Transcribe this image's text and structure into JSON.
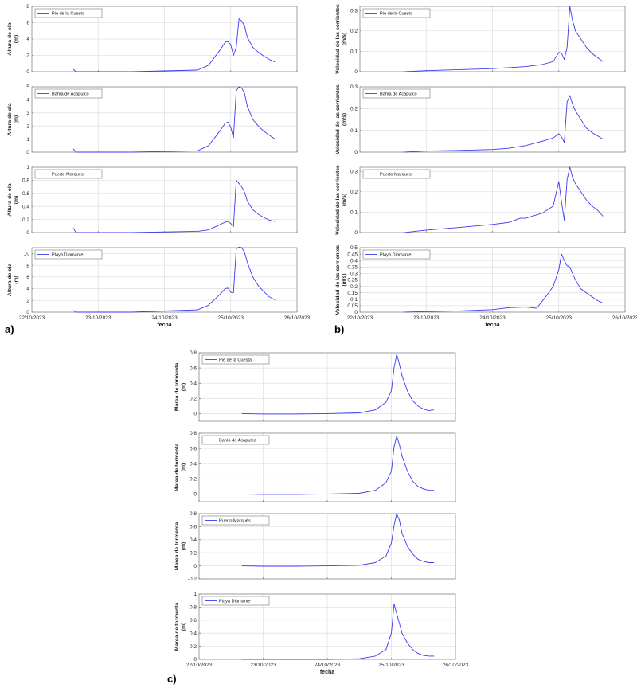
{
  "figure_labels": [
    "a)",
    "b)",
    "c)"
  ],
  "axis_text": {
    "x_label": "fecha",
    "x_ticks": [
      "22/10/2023",
      "23/10/2023",
      "24/10/2023",
      "25/10/2023",
      "26/10/2023"
    ],
    "ylabel_a": [
      "Altura de ola",
      "(m)"
    ],
    "ylabel_b": [
      "Velocidad de las corrientes",
      "(m/s)"
    ],
    "ylabel_c": [
      "Marea de tormenta",
      "(m)"
    ]
  },
  "colors": {
    "line": "#3b3bf0",
    "grid": "#e2e2e2",
    "axis": "#555555"
  },
  "chart_data": [
    {
      "type": "line",
      "panel": "a",
      "title": "",
      "xlabel": "",
      "ylabel": "Altura de ola (m)",
      "xlim": [
        "22/10/2023",
        "26/10/2023"
      ],
      "ylim": [
        0,
        8
      ],
      "yticks": [
        0,
        2,
        4,
        6,
        8
      ],
      "legend": "top-left",
      "grid": true,
      "series": [
        {
          "name": "Pie de la Cuesta",
          "x": [
            "2023-10-22T15:00",
            "2023-10-22T16:00",
            "2023-10-23T00:00",
            "2023-10-23T12:00",
            "2023-10-24T00:00",
            "2023-10-24T12:00",
            "2023-10-24T16:00",
            "2023-10-24T20:00",
            "2023-10-24T22:00",
            "2023-10-24T23:00",
            "2023-10-25T00:00",
            "2023-10-25T01:00",
            "2023-10-25T02:00",
            "2023-10-25T03:00",
            "2023-10-25T04:00",
            "2023-10-25T05:00",
            "2023-10-25T06:00",
            "2023-10-25T08:00",
            "2023-10-25T10:00",
            "2023-10-25T12:00",
            "2023-10-25T14:00",
            "2023-10-25T16:00"
          ],
          "y": [
            0.3,
            0,
            0,
            0,
            0.1,
            0.2,
            0.8,
            2.6,
            3.6,
            3.7,
            3.3,
            2.0,
            3.0,
            6.5,
            6.2,
            5.6,
            4.2,
            3.0,
            2.4,
            1.9,
            1.5,
            1.2
          ]
        }
      ]
    },
    {
      "type": "line",
      "panel": "a",
      "title": "",
      "xlabel": "",
      "ylabel": "Altura de ola (m)",
      "xlim": [
        "22/10/2023",
        "26/10/2023"
      ],
      "ylim": [
        0,
        5
      ],
      "yticks": [
        0,
        1,
        2,
        3,
        4,
        5
      ],
      "legend": "top-left",
      "grid": true,
      "series": [
        {
          "name": "Bahía de Acapulco",
          "x": [
            "2023-10-22T15:00",
            "2023-10-22T16:00",
            "2023-10-23T00:00",
            "2023-10-23T12:00",
            "2023-10-24T00:00",
            "2023-10-24T12:00",
            "2023-10-24T16:00",
            "2023-10-24T20:00",
            "2023-10-24T22:00",
            "2023-10-24T23:00",
            "2023-10-25T00:00",
            "2023-10-25T01:00",
            "2023-10-25T02:00",
            "2023-10-25T03:00",
            "2023-10-25T04:00",
            "2023-10-25T05:00",
            "2023-10-25T06:00",
            "2023-10-25T08:00",
            "2023-10-25T10:00",
            "2023-10-25T12:00",
            "2023-10-25T14:00",
            "2023-10-25T16:00"
          ],
          "y": [
            0.25,
            0,
            0,
            0,
            0.05,
            0.1,
            0.5,
            1.6,
            2.2,
            2.3,
            1.9,
            1.1,
            4.7,
            5.0,
            4.9,
            4.5,
            3.5,
            2.5,
            2.0,
            1.6,
            1.3,
            1.0
          ]
        }
      ]
    },
    {
      "type": "line",
      "panel": "a",
      "title": "",
      "xlabel": "",
      "ylabel": "Altura de ola (m)",
      "xlim": [
        "22/10/2023",
        "26/10/2023"
      ],
      "ylim": [
        0,
        1
      ],
      "yticks": [
        0,
        0.2,
        0.4,
        0.6,
        0.8,
        1
      ],
      "legend": "top-left",
      "grid": true,
      "series": [
        {
          "name": "Puerto Marqués",
          "x": [
            "2023-10-22T15:00",
            "2023-10-22T16:00",
            "2023-10-23T00:00",
            "2023-10-23T12:00",
            "2023-10-24T00:00",
            "2023-10-24T12:00",
            "2023-10-24T16:00",
            "2023-10-24T20:00",
            "2023-10-24T22:00",
            "2023-10-24T23:00",
            "2023-10-25T00:00",
            "2023-10-25T01:00",
            "2023-10-25T02:00",
            "2023-10-25T04:00",
            "2023-10-25T05:00",
            "2023-10-25T06:00",
            "2023-10-25T08:00",
            "2023-10-25T10:00",
            "2023-10-25T12:00",
            "2023-10-25T14:00",
            "2023-10-25T16:00"
          ],
          "y": [
            0.07,
            0,
            0,
            0,
            0.01,
            0.02,
            0.04,
            0.12,
            0.16,
            0.17,
            0.14,
            0.09,
            0.8,
            0.7,
            0.62,
            0.48,
            0.35,
            0.28,
            0.23,
            0.19,
            0.17
          ]
        }
      ]
    },
    {
      "type": "line",
      "panel": "a",
      "title": "",
      "xlabel": "fecha",
      "ylabel": "Altura de ola (m)",
      "xlim": [
        "22/10/2023",
        "26/10/2023"
      ],
      "ylim": [
        0,
        11
      ],
      "yticks": [
        0,
        2,
        4,
        6,
        8,
        10
      ],
      "legend": "top-left",
      "grid": true,
      "series": [
        {
          "name": "Playa Diamante",
          "x": [
            "2023-10-22T15:00",
            "2023-10-22T16:00",
            "2023-10-23T00:00",
            "2023-10-23T12:00",
            "2023-10-24T00:00",
            "2023-10-24T12:00",
            "2023-10-24T16:00",
            "2023-10-24T20:00",
            "2023-10-24T22:00",
            "2023-10-24T23:00",
            "2023-10-25T00:00",
            "2023-10-25T01:00",
            "2023-10-25T02:00",
            "2023-10-25T03:00",
            "2023-10-25T04:00",
            "2023-10-25T05:00",
            "2023-10-25T06:00",
            "2023-10-25T08:00",
            "2023-10-25T10:00",
            "2023-10-25T12:00",
            "2023-10-25T14:00",
            "2023-10-25T16:00"
          ],
          "y": [
            0.3,
            0,
            0,
            0,
            0.2,
            0.4,
            1.2,
            3.0,
            4.0,
            4.1,
            3.4,
            3.3,
            10.8,
            11.1,
            11.0,
            10.2,
            8.5,
            6.0,
            4.5,
            3.5,
            2.6,
            2.1
          ]
        }
      ]
    },
    {
      "type": "line",
      "panel": "b",
      "title": "",
      "xlabel": "",
      "ylabel": "Velocidad de las corrientes (m/s)",
      "xlim": [
        "22/10/2023",
        "26/10/2023"
      ],
      "ylim": [
        0,
        0.32
      ],
      "yticks": [
        0,
        0.1,
        0.2,
        0.3
      ],
      "legend": "top-left",
      "grid": true,
      "series": [
        {
          "name": "Pie de la Cuesta",
          "x": [
            "2023-10-22T16:00",
            "2023-10-23T00:00",
            "2023-10-23T12:00",
            "2023-10-24T00:00",
            "2023-10-24T06:00",
            "2023-10-24T12:00",
            "2023-10-24T18:00",
            "2023-10-24T22:00",
            "2023-10-25T00:00",
            "2023-10-25T01:00",
            "2023-10-25T02:00",
            "2023-10-25T03:00",
            "2023-10-25T04:00",
            "2023-10-25T05:00",
            "2023-10-25T06:00",
            "2023-10-25T08:00",
            "2023-10-25T10:00",
            "2023-10-25T12:00",
            "2023-10-25T14:00",
            "2023-10-25T16:00"
          ],
          "y": [
            0,
            0.005,
            0.01,
            0.015,
            0.02,
            0.025,
            0.035,
            0.05,
            0.095,
            0.09,
            0.06,
            0.12,
            0.32,
            0.25,
            0.2,
            0.16,
            0.12,
            0.09,
            0.07,
            0.05
          ]
        }
      ]
    },
    {
      "type": "line",
      "panel": "b",
      "title": "",
      "xlabel": "",
      "ylabel": "Velocidad de las corrientes (m/s)",
      "xlim": [
        "22/10/2023",
        "26/10/2023"
      ],
      "ylim": [
        0,
        0.3
      ],
      "yticks": [
        0,
        0.1,
        0.2,
        0.3
      ],
      "legend": "top-left",
      "grid": true,
      "series": [
        {
          "name": "Bahía de Acapulco",
          "x": [
            "2023-10-22T16:00",
            "2023-10-23T00:00",
            "2023-10-23T12:00",
            "2023-10-24T00:00",
            "2023-10-24T06:00",
            "2023-10-24T12:00",
            "2023-10-24T18:00",
            "2023-10-24T22:00",
            "2023-10-25T00:00",
            "2023-10-25T01:00",
            "2023-10-25T02:00",
            "2023-10-25T03:00",
            "2023-10-25T04:00",
            "2023-10-25T05:00",
            "2023-10-25T06:00",
            "2023-10-25T08:00",
            "2023-10-25T10:00",
            "2023-10-25T12:00",
            "2023-10-25T14:00",
            "2023-10-25T16:00"
          ],
          "y": [
            0,
            0.005,
            0.008,
            0.012,
            0.018,
            0.03,
            0.05,
            0.065,
            0.085,
            0.07,
            0.045,
            0.23,
            0.26,
            0.22,
            0.19,
            0.15,
            0.11,
            0.09,
            0.075,
            0.06
          ]
        }
      ]
    },
    {
      "type": "line",
      "panel": "b",
      "title": "",
      "xlabel": "",
      "ylabel": "Velocidad de las corrientes (m/s)",
      "xlim": [
        "22/10/2023",
        "26/10/2023"
      ],
      "ylim": [
        0,
        0.32
      ],
      "yticks": [
        0,
        0.1,
        0.2,
        0.3
      ],
      "legend": "top-left",
      "grid": true,
      "series": [
        {
          "name": "Puerto Marqués",
          "x": [
            "2023-10-22T16:00",
            "2023-10-23T00:00",
            "2023-10-23T12:00",
            "2023-10-24T00:00",
            "2023-10-24T06:00",
            "2023-10-24T10:00",
            "2023-10-24T12:00",
            "2023-10-24T18:00",
            "2023-10-24T22:00",
            "2023-10-25T00:00",
            "2023-10-25T01:00",
            "2023-10-25T02:00",
            "2023-10-25T03:00",
            "2023-10-25T04:00",
            "2023-10-25T05:00",
            "2023-10-25T06:00",
            "2023-10-25T08:00",
            "2023-10-25T10:00",
            "2023-10-25T12:00",
            "2023-10-25T14:00",
            "2023-10-25T16:00"
          ],
          "y": [
            0,
            0.012,
            0.025,
            0.04,
            0.05,
            0.07,
            0.07,
            0.095,
            0.13,
            0.25,
            0.15,
            0.06,
            0.26,
            0.32,
            0.27,
            0.24,
            0.2,
            0.16,
            0.13,
            0.11,
            0.08
          ]
        }
      ]
    },
    {
      "type": "line",
      "panel": "b",
      "title": "",
      "xlabel": "fecha",
      "ylabel": "Velocidad de las corrientes (m/s)",
      "xlim": [
        "22/10/2023",
        "26/10/2023"
      ],
      "ylim": [
        0,
        0.5
      ],
      "yticks": [
        0,
        0.05,
        0.1,
        0.15,
        0.2,
        0.25,
        0.3,
        0.35,
        0.4,
        0.45,
        0.5
      ],
      "legend": "top-left",
      "grid": true,
      "series": [
        {
          "name": "Playa Diamante",
          "x": [
            "2023-10-22T16:00",
            "2023-10-23T00:00",
            "2023-10-23T12:00",
            "2023-10-24T00:00",
            "2023-10-24T06:00",
            "2023-10-24T12:00",
            "2023-10-24T16:00",
            "2023-10-24T20:00",
            "2023-10-24T22:00",
            "2023-10-25T00:00",
            "2023-10-25T01:00",
            "2023-10-25T02:00",
            "2023-10-25T03:00",
            "2023-10-25T04:00",
            "2023-10-25T05:00",
            "2023-10-25T06:00",
            "2023-10-25T08:00",
            "2023-10-25T10:00",
            "2023-10-25T12:00",
            "2023-10-25T14:00",
            "2023-10-25T16:00"
          ],
          "y": [
            0,
            0.005,
            0.01,
            0.02,
            0.035,
            0.04,
            0.03,
            0.14,
            0.2,
            0.33,
            0.45,
            0.4,
            0.36,
            0.35,
            0.3,
            0.25,
            0.18,
            0.15,
            0.12,
            0.09,
            0.07
          ]
        }
      ]
    },
    {
      "type": "line",
      "panel": "c",
      "title": "",
      "xlabel": "",
      "ylabel": "Marea de tormenta (m)",
      "xlim": [
        "22/10/2023",
        "26/10/2023"
      ],
      "ylim": [
        -0.1,
        0.8
      ],
      "yticks": [
        0,
        0.2,
        0.4,
        0.6,
        0.8
      ],
      "legend": "top-left",
      "grid": true,
      "series": [
        {
          "name": "Pie de la Cuesta",
          "x": [
            "2023-10-22T16:00",
            "2023-10-23T00:00",
            "2023-10-23T12:00",
            "2023-10-24T00:00",
            "2023-10-24T12:00",
            "2023-10-24T18:00",
            "2023-10-24T22:00",
            "2023-10-25T00:00",
            "2023-10-25T01:00",
            "2023-10-25T02:00",
            "2023-10-25T03:00",
            "2023-10-25T04:00",
            "2023-10-25T06:00",
            "2023-10-25T08:00",
            "2023-10-25T10:00",
            "2023-10-25T12:00",
            "2023-10-25T14:00",
            "2023-10-25T16:00"
          ],
          "y": [
            0,
            -0.005,
            -0.005,
            0,
            0.01,
            0.05,
            0.15,
            0.3,
            0.6,
            0.78,
            0.65,
            0.5,
            0.3,
            0.17,
            0.1,
            0.06,
            0.04,
            0.05
          ]
        }
      ]
    },
    {
      "type": "line",
      "panel": "c",
      "title": "",
      "xlabel": "",
      "ylabel": "Marea de tormenta (m)",
      "xlim": [
        "22/10/2023",
        "26/10/2023"
      ],
      "ylim": [
        -0.1,
        0.8
      ],
      "yticks": [
        0,
        0.2,
        0.4,
        0.6,
        0.8
      ],
      "legend": "top-left",
      "grid": true,
      "series": [
        {
          "name": "Bahía de Acapulco",
          "x": [
            "2023-10-22T16:00",
            "2023-10-23T00:00",
            "2023-10-23T12:00",
            "2023-10-24T00:00",
            "2023-10-24T12:00",
            "2023-10-24T18:00",
            "2023-10-24T22:00",
            "2023-10-25T00:00",
            "2023-10-25T01:00",
            "2023-10-25T02:00",
            "2023-10-25T03:00",
            "2023-10-25T04:00",
            "2023-10-25T06:00",
            "2023-10-25T08:00",
            "2023-10-25T10:00",
            "2023-10-25T12:00",
            "2023-10-25T14:00",
            "2023-10-25T16:00"
          ],
          "y": [
            0,
            -0.005,
            -0.005,
            0,
            0.01,
            0.05,
            0.15,
            0.3,
            0.62,
            0.76,
            0.65,
            0.5,
            0.3,
            0.17,
            0.1,
            0.07,
            0.05,
            0.05
          ]
        }
      ]
    },
    {
      "type": "line",
      "panel": "c",
      "title": "",
      "xlabel": "",
      "ylabel": "Marea de tormenta (m)",
      "xlim": [
        "22/10/2023",
        "26/10/2023"
      ],
      "ylim": [
        -0.2,
        0.8
      ],
      "yticks": [
        -0.2,
        0,
        0.2,
        0.4,
        0.6,
        0.8
      ],
      "legend": "top-left",
      "grid": true,
      "series": [
        {
          "name": "Puerto Marqués",
          "x": [
            "2023-10-22T16:00",
            "2023-10-23T00:00",
            "2023-10-23T12:00",
            "2023-10-24T00:00",
            "2023-10-24T12:00",
            "2023-10-24T18:00",
            "2023-10-24T22:00",
            "2023-10-25T00:00",
            "2023-10-25T01:00",
            "2023-10-25T02:00",
            "2023-10-25T03:00",
            "2023-10-25T04:00",
            "2023-10-25T06:00",
            "2023-10-25T08:00",
            "2023-10-25T10:00",
            "2023-10-25T12:00",
            "2023-10-25T14:00",
            "2023-10-25T16:00"
          ],
          "y": [
            0,
            -0.005,
            -0.005,
            0,
            0.01,
            0.05,
            0.15,
            0.35,
            0.62,
            0.8,
            0.7,
            0.5,
            0.3,
            0.18,
            0.1,
            0.07,
            0.05,
            0.05
          ]
        }
      ]
    },
    {
      "type": "line",
      "panel": "c",
      "title": "",
      "xlabel": "fecha",
      "ylabel": "Marea de tormenta (m)",
      "xlim": [
        "22/10/2023",
        "26/10/2023"
      ],
      "ylim": [
        0,
        1
      ],
      "yticks": [
        0,
        0.2,
        0.4,
        0.6,
        0.8,
        1
      ],
      "legend": "top-left",
      "grid": true,
      "series": [
        {
          "name": "Playa Diamante",
          "x": [
            "2023-10-22T16:00",
            "2023-10-23T00:00",
            "2023-10-23T12:00",
            "2023-10-24T00:00",
            "2023-10-24T12:00",
            "2023-10-24T18:00",
            "2023-10-24T22:00",
            "2023-10-25T00:00",
            "2023-10-25T01:00",
            "2023-10-25T02:00",
            "2023-10-25T03:00",
            "2023-10-25T04:00",
            "2023-10-25T06:00",
            "2023-10-25T08:00",
            "2023-10-25T10:00",
            "2023-10-25T12:00",
            "2023-10-25T14:00",
            "2023-10-25T16:00"
          ],
          "y": [
            0,
            0,
            0,
            0,
            0.01,
            0.05,
            0.15,
            0.4,
            0.85,
            0.7,
            0.55,
            0.4,
            0.25,
            0.15,
            0.09,
            0.06,
            0.05,
            0.05
          ]
        }
      ]
    }
  ]
}
